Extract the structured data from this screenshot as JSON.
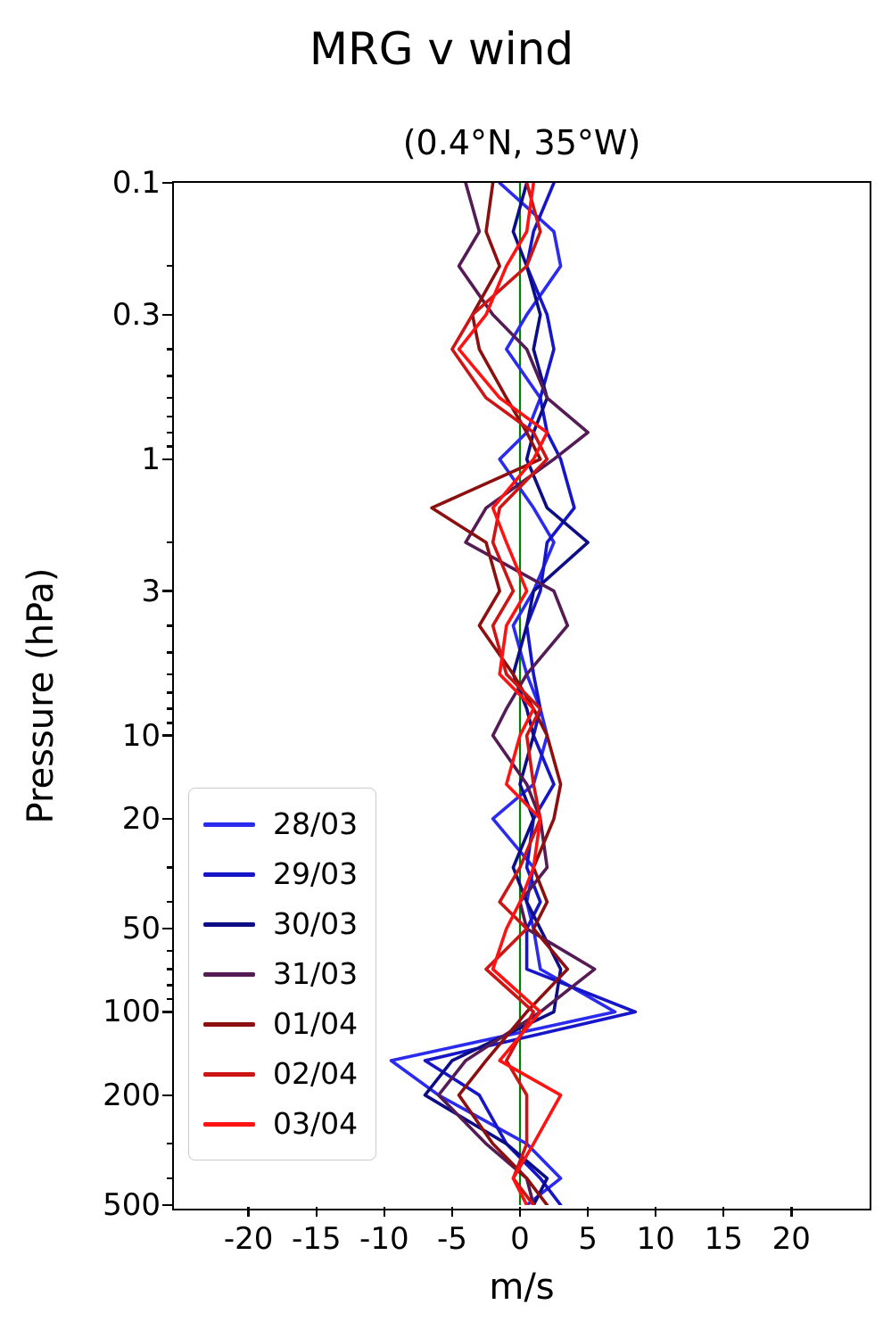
{
  "chart_data": {
    "type": "line",
    "title": "MRG v wind",
    "subtitle": "(0.4°N, 35°W)",
    "xlabel": "m/s",
    "ylabel": "Pressure (hPa)",
    "x_axis": {
      "min": -25.5,
      "max": 25.5,
      "ticks": [
        -20,
        -15,
        -10,
        -5,
        0,
        5,
        10,
        15,
        20
      ]
    },
    "y_axis": {
      "scale": "log",
      "min_hpa": 0.1,
      "max_hpa": 500,
      "inverted": true,
      "labeled_ticks": [
        0.1,
        0.3,
        1,
        3,
        10,
        20,
        50,
        100,
        200,
        500
      ],
      "tick_labels": [
        "0.1",
        "0.3",
        "1",
        "3",
        "10",
        "20",
        "50",
        "100",
        "200",
        "500"
      ]
    },
    "zero_line": {
      "x": 0,
      "color": "#008000"
    },
    "legend_position": "center-left",
    "pressure_levels_hpa": [
      0.1,
      0.15,
      0.2,
      0.3,
      0.4,
      0.6,
      0.8,
      1,
      1.5,
      2,
      3,
      4,
      6,
      8,
      10,
      15,
      20,
      30,
      40,
      50,
      70,
      100,
      150,
      200,
      300,
      400,
      500
    ],
    "series": [
      {
        "name": "28/03",
        "color": "#2b2bf0",
        "values": [
          -1.5,
          2.5,
          3,
          0.5,
          -1,
          1.5,
          0.5,
          -1.5,
          1,
          2.5,
          1,
          -0.5,
          0.5,
          1.5,
          2,
          1,
          -2,
          1,
          0.5,
          1,
          1.5,
          7,
          -9.5,
          -6,
          0.5,
          3,
          0.5
        ]
      },
      {
        "name": "29/03",
        "color": "#1616c8",
        "values": [
          2.5,
          1,
          0.5,
          2,
          2.5,
          1.5,
          2,
          3,
          4,
          2,
          1.5,
          0.5,
          1,
          1.5,
          1,
          2.5,
          1,
          0.5,
          1.5,
          0.5,
          0.5,
          8.5,
          -7,
          -3,
          -1,
          1.5,
          3
        ]
      },
      {
        "name": "30/03",
        "color": "#0d0d86",
        "values": [
          0.5,
          -0.5,
          0.5,
          1.5,
          1,
          2,
          1,
          0.5,
          2,
          5,
          1,
          0.5,
          -0.5,
          0.5,
          1,
          0,
          1,
          -0.5,
          0.5,
          1.5,
          3,
          2.5,
          -5,
          -7,
          -1,
          2,
          1
        ]
      },
      {
        "name": "31/03",
        "color": "#541b54",
        "values": [
          -4,
          -3,
          -4.5,
          -2,
          0.5,
          2,
          5,
          2.5,
          -2.5,
          -4,
          2.5,
          3.5,
          0.5,
          -1,
          -2,
          0.5,
          1.5,
          2,
          0,
          0.5,
          5.5,
          1.5,
          -4,
          -6,
          -2.5,
          0.5,
          1
        ]
      },
      {
        "name": "01/04",
        "color": "#8c1010",
        "values": [
          -2,
          -2.5,
          -1.5,
          -3.5,
          -3,
          -1,
          0.5,
          1.5,
          -6.5,
          -2.5,
          -1.5,
          -3,
          -0.5,
          1,
          2,
          3,
          2.5,
          1,
          2,
          1,
          3.5,
          0.5,
          -2.5,
          -4.5,
          -2,
          0.5,
          2
        ]
      },
      {
        "name": "02/04",
        "color": "#cc1515",
        "values": [
          0.5,
          1.5,
          0.5,
          -3.5,
          -5,
          -2.5,
          1,
          2,
          -1.5,
          -2,
          -0.5,
          -2,
          -1,
          1.5,
          0.5,
          1,
          1.5,
          0,
          -1.5,
          0.5,
          -2.5,
          1,
          -1,
          0.5,
          0.5,
          -0.5,
          1
        ]
      },
      {
        "name": "03/04",
        "color": "#ff1212",
        "values": [
          1,
          0.5,
          -1,
          -2.5,
          -4.5,
          -1.5,
          2,
          1,
          -2,
          -1,
          0.5,
          -1,
          -1.5,
          1,
          0,
          -1,
          1.5,
          1,
          0,
          -1,
          -2,
          1.5,
          -1.5,
          3,
          1,
          -0.5,
          0.5
        ]
      }
    ]
  }
}
